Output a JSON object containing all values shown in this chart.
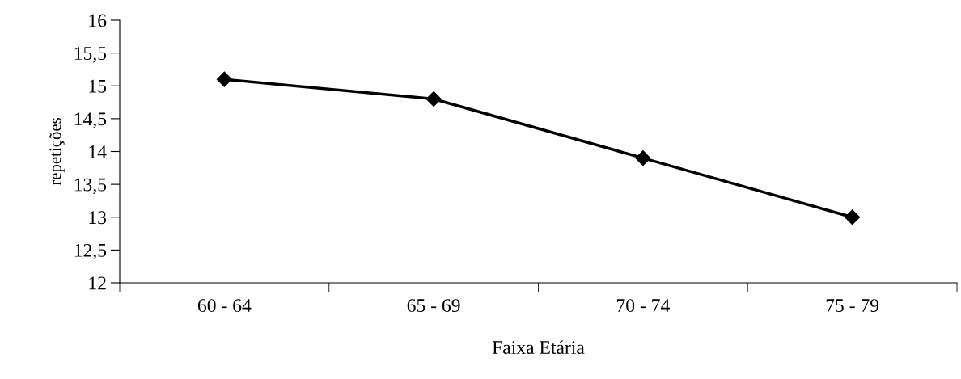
{
  "chart_data": {
    "type": "line",
    "xlabel": "Faixa Etária",
    "ylabel": "repetições",
    "categories": [
      "60 - 64",
      "65 - 69",
      "70 - 74",
      "75 - 79"
    ],
    "series": [
      {
        "color": "#000000",
        "values": [
          15.1,
          14.8,
          13.9,
          13.0
        ]
      }
    ],
    "ylim": [
      12,
      16
    ],
    "yticks": [
      12,
      {
        "value": 12.5,
        "label": "12,5"
      },
      13,
      {
        "value": 13.5,
        "label": "13,5"
      },
      14,
      {
        "value": 14.5,
        "label": "14,5"
      },
      15,
      {
        "value": 15.5,
        "label": "15,5"
      },
      16
    ],
    "marker": "diamond",
    "line_style": "solid",
    "grid": false,
    "legend": false
  }
}
